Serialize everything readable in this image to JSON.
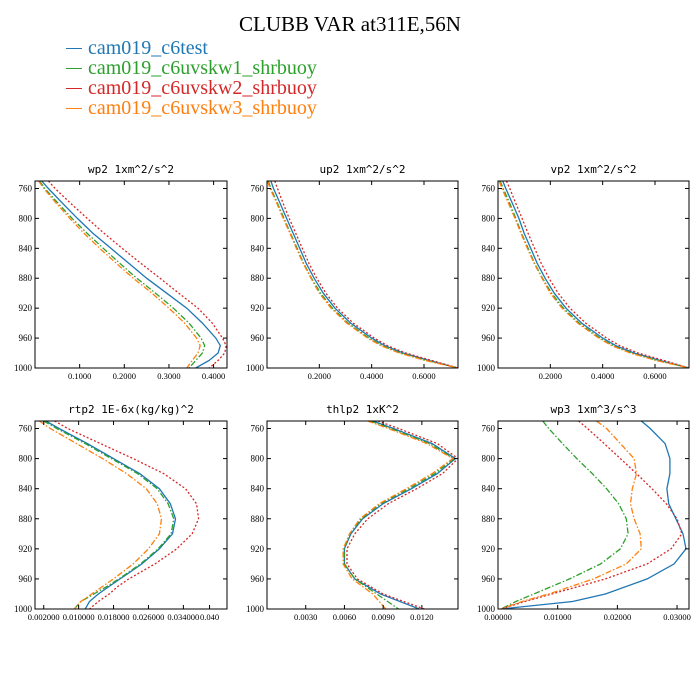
{
  "title": "CLUBB VAR at311E,56N",
  "colors": {
    "c1": "#1f77b4",
    "c2": "#2ca02c",
    "c3": "#d62728",
    "c4": "#ff7f0e"
  },
  "legend": [
    {
      "name": "cam019_c6test",
      "color": "#1f77b4"
    },
    {
      "name": "cam019_c6uvskw1_shrbuoy",
      "color": "#2ca02c"
    },
    {
      "name": "cam019_c6uvskw2_shrbuoy",
      "color": "#d62728"
    },
    {
      "name": "cam019_c6uvskw3_shrbuoy",
      "color": "#ff7f0e"
    }
  ],
  "chart_data": [
    {
      "type": "line",
      "title": "wp2  1xm^2/s^2",
      "xlim": [
        0.0,
        0.43
      ],
      "ylim": [
        1000,
        750
      ],
      "y_inverted": true,
      "xticks": [
        0.1,
        0.2,
        0.3,
        0.4
      ],
      "xticklabels": [
        "0.1000",
        "0.2000",
        "0.3000",
        "0.4000"
      ],
      "yticks": [
        760,
        800,
        840,
        880,
        920,
        960,
        1000
      ],
      "y": [
        750,
        760,
        780,
        800,
        820,
        840,
        860,
        880,
        900,
        920,
        940,
        960,
        970,
        980,
        990,
        1000
      ],
      "series": [
        {
          "name": "cam019_c6test",
          "color": "#1f77b4",
          "dash": "solid",
          "values": [
            0.015,
            0.03,
            0.062,
            0.095,
            0.13,
            0.17,
            0.21,
            0.25,
            0.295,
            0.34,
            0.375,
            0.405,
            0.415,
            0.41,
            0.39,
            0.36
          ]
        },
        {
          "name": "cam019_c6uvskw1_shrbuoy",
          "color": "#2ca02c",
          "dash": "dashdot",
          "values": [
            0.01,
            0.022,
            0.052,
            0.083,
            0.117,
            0.153,
            0.19,
            0.228,
            0.27,
            0.31,
            0.345,
            0.372,
            0.38,
            0.375,
            0.36,
            0.345
          ]
        },
        {
          "name": "cam019_c6uvskw2_shrbuoy",
          "color": "#d62728",
          "dash": "dot",
          "values": [
            0.03,
            0.045,
            0.08,
            0.117,
            0.155,
            0.195,
            0.237,
            0.28,
            0.322,
            0.365,
            0.397,
            0.42,
            0.428,
            0.425,
            0.41,
            0.39
          ]
        },
        {
          "name": "cam019_c6uvskw3_shrbuoy",
          "color": "#ff7f0e",
          "dash": "dashdot",
          "values": [
            0.008,
            0.02,
            0.048,
            0.078,
            0.11,
            0.145,
            0.182,
            0.22,
            0.262,
            0.3,
            0.335,
            0.362,
            0.37,
            0.365,
            0.352,
            0.34
          ]
        }
      ]
    },
    {
      "type": "line",
      "title": "up2  1xm^2/s^2",
      "xlim": [
        0.0,
        0.73
      ],
      "ylim": [
        1000,
        750
      ],
      "y_inverted": true,
      "xticks": [
        0.2,
        0.4,
        0.6
      ],
      "xticklabels": [
        "0.2000",
        "0.4000",
        "0.6000"
      ],
      "yticks": [
        760,
        800,
        840,
        880,
        920,
        960,
        1000
      ],
      "y": [
        750,
        760,
        780,
        800,
        820,
        840,
        860,
        880,
        900,
        920,
        940,
        960,
        970,
        980,
        990,
        1000
      ],
      "series": [
        {
          "name": "cam019_c6test",
          "color": "#1f77b4",
          "dash": "solid",
          "values": [
            0.015,
            0.025,
            0.05,
            0.075,
            0.1,
            0.125,
            0.15,
            0.18,
            0.215,
            0.26,
            0.32,
            0.4,
            0.45,
            0.52,
            0.62,
            0.73
          ]
        },
        {
          "name": "cam019_c6uvskw1_shrbuoy",
          "color": "#2ca02c",
          "dash": "dashdot",
          "values": [
            0.005,
            0.015,
            0.04,
            0.065,
            0.09,
            0.115,
            0.14,
            0.17,
            0.205,
            0.25,
            0.31,
            0.39,
            0.44,
            0.51,
            0.61,
            0.73
          ]
        },
        {
          "name": "cam019_c6uvskw2_shrbuoy",
          "color": "#d62728",
          "dash": "dot",
          "values": [
            0.03,
            0.04,
            0.062,
            0.085,
            0.11,
            0.135,
            0.16,
            0.19,
            0.225,
            0.27,
            0.33,
            0.41,
            0.46,
            0.53,
            0.63,
            0.73
          ]
        },
        {
          "name": "cam019_c6uvskw3_shrbuoy",
          "color": "#ff7f0e",
          "dash": "dashdot",
          "values": [
            0.002,
            0.012,
            0.038,
            0.062,
            0.088,
            0.112,
            0.138,
            0.168,
            0.2,
            0.245,
            0.305,
            0.385,
            0.435,
            0.505,
            0.605,
            0.73
          ]
        }
      ]
    },
    {
      "type": "line",
      "title": "vp2  1xm^2/s^2",
      "xlim": [
        0.0,
        0.73
      ],
      "ylim": [
        1000,
        750
      ],
      "y_inverted": true,
      "xticks": [
        0.2,
        0.4,
        0.6
      ],
      "xticklabels": [
        "0.2000",
        "0.4000",
        "0.6000"
      ],
      "yticks": [
        760,
        800,
        840,
        880,
        920,
        960,
        1000
      ],
      "y": [
        750,
        760,
        780,
        800,
        820,
        840,
        860,
        880,
        900,
        920,
        940,
        960,
        970,
        980,
        990,
        1000
      ],
      "series": [
        {
          "name": "cam019_c6test",
          "color": "#1f77b4",
          "dash": "solid",
          "values": [
            0.018,
            0.03,
            0.055,
            0.08,
            0.1,
            0.125,
            0.15,
            0.18,
            0.215,
            0.26,
            0.32,
            0.4,
            0.45,
            0.52,
            0.62,
            0.73
          ]
        },
        {
          "name": "cam019_c6uvskw1_shrbuoy",
          "color": "#2ca02c",
          "dash": "dashdot",
          "values": [
            0.008,
            0.02,
            0.045,
            0.068,
            0.09,
            0.115,
            0.14,
            0.17,
            0.205,
            0.25,
            0.31,
            0.39,
            0.44,
            0.51,
            0.61,
            0.73
          ]
        },
        {
          "name": "cam019_c6uvskw2_shrbuoy",
          "color": "#d62728",
          "dash": "dot",
          "values": [
            0.032,
            0.045,
            0.068,
            0.092,
            0.115,
            0.14,
            0.165,
            0.195,
            0.23,
            0.275,
            0.335,
            0.415,
            0.465,
            0.535,
            0.635,
            0.73
          ]
        },
        {
          "name": "cam019_c6uvskw3_shrbuoy",
          "color": "#ff7f0e",
          "dash": "dashdot",
          "values": [
            0.005,
            0.015,
            0.04,
            0.065,
            0.088,
            0.112,
            0.138,
            0.168,
            0.2,
            0.245,
            0.305,
            0.385,
            0.435,
            0.505,
            0.605,
            0.73
          ]
        }
      ]
    },
    {
      "type": "line",
      "title": "rtp2  1E-6x(kg/kg)^2",
      "xlim": [
        0.0,
        0.044
      ],
      "ylim": [
        1000,
        750
      ],
      "y_inverted": true,
      "xticks": [
        0.002,
        0.01,
        0.018,
        0.026,
        0.034,
        0.04
      ],
      "xticklabels": [
        "0.002000",
        "0.010000",
        "0.018000",
        "0.026000",
        "0.034000",
        "0.040"
      ],
      "yticks": [
        760,
        800,
        840,
        880,
        920,
        960,
        1000
      ],
      "y": [
        750,
        760,
        780,
        800,
        820,
        840,
        860,
        880,
        900,
        920,
        940,
        960,
        970,
        980,
        990,
        1000
      ],
      "series": [
        {
          "name": "cam019_c6test",
          "color": "#1f77b4",
          "dash": "solid",
          "values": [
            0.0025,
            0.0055,
            0.012,
            0.018,
            0.024,
            0.0285,
            0.031,
            0.0322,
            0.0315,
            0.0285,
            0.0245,
            0.0195,
            0.017,
            0.0145,
            0.0125,
            0.0115
          ]
        },
        {
          "name": "cam019_c6uvskw1_shrbuoy",
          "color": "#2ca02c",
          "dash": "dashdot",
          "values": [
            0.002,
            0.005,
            0.0115,
            0.0175,
            0.0235,
            0.028,
            0.0305,
            0.0318,
            0.0312,
            0.0282,
            0.0242,
            0.0192,
            0.0165,
            0.0135,
            0.0105,
            0.009
          ]
        },
        {
          "name": "cam019_c6uvskw2_shrbuoy",
          "color": "#d62728",
          "dash": "dot",
          "values": [
            0.0045,
            0.0075,
            0.015,
            0.0225,
            0.0295,
            0.0345,
            0.037,
            0.0375,
            0.036,
            0.0325,
            0.0275,
            0.0215,
            0.019,
            0.017,
            0.0145,
            0.0125
          ]
        },
        {
          "name": "cam019_c6uvskw3_shrbuoy",
          "color": "#ff7f0e",
          "dash": "dashdot",
          "values": [
            0.001,
            0.0035,
            0.0095,
            0.0155,
            0.021,
            0.0255,
            0.028,
            0.029,
            0.0285,
            0.026,
            0.0225,
            0.018,
            0.0155,
            0.013,
            0.0105,
            0.009
          ]
        }
      ]
    },
    {
      "type": "line",
      "title": "thlp2  1xK^2",
      "xlim": [
        0.0,
        0.0148
      ],
      "ylim": [
        1000,
        750
      ],
      "y_inverted": true,
      "xticks": [
        0.003,
        0.006,
        0.009,
        0.012
      ],
      "xticklabels": [
        "0.0030",
        "0.0060",
        "0.0090",
        "0.0120"
      ],
      "yticks": [
        760,
        800,
        840,
        880,
        920,
        960,
        1000
      ],
      "y": [
        750,
        760,
        780,
        800,
        820,
        840,
        860,
        880,
        900,
        920,
        940,
        960,
        980,
        1000
      ],
      "series": [
        {
          "name": "cam019_c6test",
          "color": "#1f77b4",
          "dash": "solid",
          "values": [
            0.0082,
            0.0098,
            0.0128,
            0.0146,
            0.0132,
            0.0112,
            0.009,
            0.0074,
            0.0065,
            0.006,
            0.006,
            0.0068,
            0.0088,
            0.0118
          ]
        },
        {
          "name": "cam019_c6uvskw1_shrbuoy",
          "color": "#2ca02c",
          "dash": "dashdot",
          "values": [
            0.008,
            0.0096,
            0.0126,
            0.0145,
            0.013,
            0.011,
            0.0088,
            0.0073,
            0.0064,
            0.006,
            0.006,
            0.0068,
            0.0085,
            0.0102
          ]
        },
        {
          "name": "cam019_c6uvskw2_shrbuoy",
          "color": "#d62728",
          "dash": "dot",
          "values": [
            0.0086,
            0.0102,
            0.0132,
            0.0148,
            0.0136,
            0.0116,
            0.0094,
            0.0078,
            0.0068,
            0.0062,
            0.0062,
            0.007,
            0.009,
            0.0122
          ]
        },
        {
          "name": "cam019_c6uvskw3_shrbuoy",
          "color": "#ff7f0e",
          "dash": "dashdot",
          "values": [
            0.0078,
            0.0094,
            0.0124,
            0.0144,
            0.0128,
            0.0108,
            0.0087,
            0.0072,
            0.0064,
            0.0059,
            0.0059,
            0.0066,
            0.0082,
            0.0092
          ]
        }
      ]
    },
    {
      "type": "line",
      "title": "wp3  1xm^3/s^3",
      "xlim": [
        0.0,
        0.032
      ],
      "ylim": [
        1000,
        750
      ],
      "y_inverted": true,
      "xticks": [
        0.0,
        0.01,
        0.02,
        0.03
      ],
      "xticklabels": [
        "0.00000",
        "0.01000",
        "0.02000",
        "0.03000"
      ],
      "yticks": [
        760,
        800,
        840,
        880,
        920,
        960,
        1000
      ],
      "y": [
        750,
        760,
        780,
        800,
        820,
        840,
        860,
        880,
        900,
        920,
        940,
        960,
        980,
        990,
        1000
      ],
      "series": [
        {
          "name": "cam019_c6test",
          "color": "#1f77b4",
          "dash": "solid",
          "values": [
            0.024,
            0.0255,
            0.028,
            0.0288,
            0.0288,
            0.0283,
            0.0286,
            0.0298,
            0.031,
            0.0315,
            0.0295,
            0.025,
            0.018,
            0.0125,
            0.0005
          ]
        },
        {
          "name": "cam019_c6uvskw1_shrbuoy",
          "color": "#2ca02c",
          "dash": "dashdot",
          "values": [
            0.0075,
            0.0085,
            0.0108,
            0.0132,
            0.0158,
            0.0182,
            0.0202,
            0.0215,
            0.0218,
            0.0205,
            0.0172,
            0.012,
            0.006,
            0.003,
            0.0005
          ]
        },
        {
          "name": "cam019_c6uvskw2_shrbuoy",
          "color": "#d62728",
          "dash": "dot",
          "values": [
            0.0135,
            0.015,
            0.0178,
            0.0205,
            0.0232,
            0.0258,
            0.0282,
            0.03,
            0.0308,
            0.029,
            0.025,
            0.018,
            0.009,
            0.0045,
            0.0005
          ]
        },
        {
          "name": "cam019_c6uvskw3_shrbuoy",
          "color": "#ff7f0e",
          "dash": "dashdot",
          "values": [
            0.0165,
            0.0182,
            0.0205,
            0.0228,
            0.0232,
            0.0225,
            0.0222,
            0.0228,
            0.0238,
            0.024,
            0.0215,
            0.016,
            0.0085,
            0.004,
            0.0005
          ]
        }
      ]
    }
  ]
}
